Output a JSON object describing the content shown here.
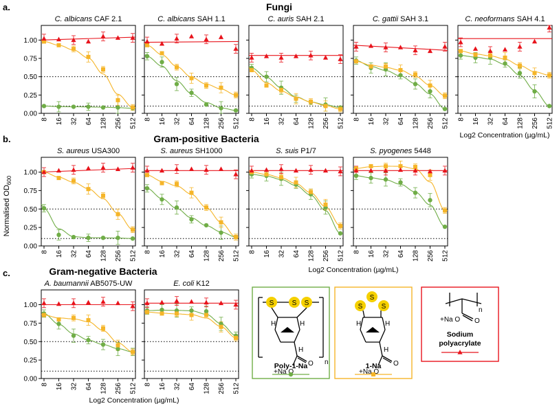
{
  "chart_data": {
    "type": "line",
    "ylabel_main": "Normalised OD",
    "ylabel_sub": "600",
    "xlabel": "Log2 Concentration (µg/mL)",
    "x_ticks": [
      "8",
      "16",
      "32",
      "64",
      "128",
      "256",
      "512"
    ],
    "y_ticks": [
      "0.00",
      "0.25",
      "0.50",
      "0.75",
      "1.00"
    ],
    "ylim": [
      0,
      1.2
    ],
    "reference_lines": [
      0.5,
      0.1
    ],
    "colors": {
      "poly": "#70ad47",
      "mono": "#f5b529",
      "sodium": "#e8141c",
      "axis": "#000000",
      "ref": "#000000"
    },
    "series_names": [
      "Poly-1-Na",
      "1-Na",
      "Sodium polyacrylate"
    ],
    "sections": [
      {
        "letter": "a.",
        "title": "Fungi"
      },
      {
        "letter": "b.",
        "title": "Gram-positive Bacteria"
      },
      {
        "letter": "c.",
        "title": "Gram-negative Bacteria"
      }
    ],
    "panels": [
      {
        "sp": "C. albicans",
        "st": "CAF 2.1",
        "poly": [
          0.1,
          0.09,
          0.09,
          0.09,
          0.08,
          0.08,
          0.07
        ],
        "mono": [
          0.98,
          0.93,
          0.88,
          0.77,
          0.6,
          0.18,
          0.08
        ],
        "sodium": [
          1.02,
          1.01,
          1.0,
          0.98,
          1.05,
          1.03,
          1.03
        ],
        "fit_sodium": [
          1.0,
          1.04
        ]
      },
      {
        "sp": "C. albicans",
        "st": "SAH 1.1",
        "poly": [
          0.78,
          0.7,
          0.4,
          0.28,
          0.12,
          0.07,
          0.04
        ],
        "mono": [
          0.93,
          0.82,
          0.63,
          0.48,
          0.38,
          0.35,
          0.25
        ],
        "sodium": [
          0.98,
          0.95,
          1.02,
          1.05,
          1.01,
          1.04,
          0.88
        ],
        "fit_sodium": [
          0.97,
          0.98
        ]
      },
      {
        "sp": "C. auris",
        "st": "SAH 2.1",
        "poly": [
          0.62,
          0.5,
          0.35,
          0.2,
          0.15,
          0.12,
          0.08
        ],
        "mono": [
          0.59,
          0.38,
          0.32,
          0.2,
          0.16,
          0.1,
          0.06
        ],
        "sodium": [
          0.76,
          0.78,
          0.76,
          0.78,
          0.79,
          0.76,
          0.74
        ],
        "fit_sodium": [
          0.79,
          0.79
        ]
      },
      {
        "sp": "C. gattii",
        "st": "SAH 3.1",
        "poly": [
          0.72,
          0.62,
          0.6,
          0.52,
          0.4,
          0.3,
          0.06
        ],
        "mono": [
          0.71,
          0.64,
          0.64,
          0.59,
          0.53,
          0.38,
          0.24
        ],
        "sodium": [
          0.91,
          0.92,
          0.9,
          0.9,
          0.86,
          0.85,
          0.91
        ],
        "fit_sodium": [
          0.93,
          0.86
        ]
      },
      {
        "sp": "C. neoformans",
        "st": "SAH 4.1",
        "poly": [
          0.79,
          0.76,
          0.76,
          0.68,
          0.55,
          0.3,
          0.1
        ],
        "mono": [
          0.85,
          0.8,
          0.79,
          0.76,
          0.65,
          0.55,
          0.52
        ],
        "sodium": [
          0.97,
          0.88,
          0.85,
          0.87,
          0.91,
          0.98,
          1.17
        ],
        "fit_sodium": [
          1.02,
          1.02
        ]
      },
      {
        "sp": "S. aureus",
        "st": "USA300",
        "poly": [
          0.51,
          0.15,
          0.12,
          0.11,
          0.11,
          0.11,
          0.1
        ],
        "mono": [
          1.0,
          0.92,
          0.88,
          0.77,
          0.68,
          0.43,
          0.22
        ],
        "sodium": [
          1.0,
          1.02,
          1.03,
          1.05,
          1.06,
          1.04,
          1.06
        ],
        "fit_sodium": [
          1.0,
          1.05
        ]
      },
      {
        "sp": "S. aureus",
        "st": "SH1000",
        "poly": [
          0.78,
          0.63,
          0.52,
          0.36,
          0.28,
          0.18,
          0.12
        ],
        "mono": [
          0.96,
          0.85,
          0.84,
          0.72,
          0.52,
          0.32,
          0.12
        ],
        "sodium": [
          1.02,
          1.02,
          1.04,
          1.04,
          1.03,
          1.04,
          0.97
        ],
        "fit_sodium": [
          1.02,
          1.02
        ]
      },
      {
        "sp": "S. suis",
        "st": "P1/7",
        "poly": [
          0.97,
          0.95,
          0.91,
          0.83,
          0.7,
          0.52,
          0.17
        ],
        "mono": [
          1.0,
          0.97,
          0.93,
          0.86,
          0.73,
          0.56,
          0.27
        ],
        "sodium": [
          1.02,
          1.03,
          1.04,
          1.02,
          1.03,
          1.02,
          1.01
        ],
        "fit_sodium": [
          1.02,
          1.02
        ]
      },
      {
        "sp": "S. pyogenes",
        "st": "5448",
        "poly": [
          0.95,
          0.92,
          0.9,
          0.86,
          0.72,
          0.62,
          0.26
        ],
        "mono": [
          1.05,
          1.08,
          1.08,
          1.08,
          1.07,
          0.96,
          0.48
        ],
        "sodium": [
          1.02,
          1.02,
          1.02,
          1.03,
          1.02,
          1.01,
          1.02
        ],
        "fit_sodium": [
          1.02,
          1.02
        ]
      },
      {
        "sp": "A. baumannii",
        "st": "AB5075-UW",
        "poly": [
          0.88,
          0.74,
          0.58,
          0.52,
          0.46,
          0.4,
          0.36
        ],
        "mono": [
          0.86,
          0.8,
          0.82,
          0.79,
          0.68,
          0.45,
          0.36
        ],
        "sodium": [
          1.02,
          1.01,
          1.02,
          1.03,
          1.04,
          1.02,
          0.98
        ],
        "fit_sodium": [
          1.0,
          1.0
        ]
      },
      {
        "sp": "E. coli",
        "st": "K12",
        "poly": [
          0.92,
          0.93,
          0.92,
          0.92,
          0.91,
          0.74,
          0.58
        ],
        "mono": [
          0.9,
          0.88,
          0.88,
          0.86,
          0.86,
          0.7,
          0.55
        ],
        "sodium": [
          1.02,
          1.03,
          1.05,
          1.04,
          1.03,
          1.02,
          1.0
        ],
        "fit_sodium": [
          1.02,
          1.02
        ]
      }
    ]
  },
  "legend": {
    "poly_label": "Poly-1-Na",
    "mono_label": "1-Na",
    "sodium_label_1": "Sodium",
    "sodium_label_2": "polyacrylate",
    "cation": "+Na",
    "anion_o": "O",
    "dbl_o": "O",
    "sub_n": "n",
    "atom_s": "S",
    "atom_h": "H"
  }
}
